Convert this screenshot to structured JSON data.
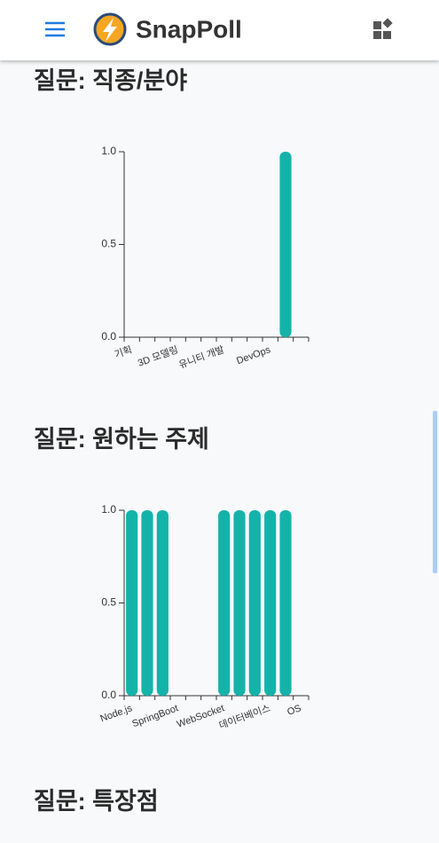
{
  "header": {
    "app_name": "SnapPoll"
  },
  "sections": [
    {
      "title": "질문: 직종/분야",
      "chart": {
        "type": "bar",
        "color": "#14b3aa",
        "categories": [
          "기획",
          null,
          null,
          "3D 모델링",
          null,
          null,
          "유니티 개발",
          null,
          null,
          "DevOps",
          null,
          null
        ],
        "values": [
          0,
          0,
          0,
          0,
          0,
          0,
          0,
          0,
          0,
          0,
          1,
          0
        ],
        "ylim": [
          0,
          1
        ],
        "yticks": [
          {
            "value": 0,
            "label": "0.0"
          },
          {
            "value": 0.5,
            "label": "0.5"
          },
          {
            "value": 1,
            "label": "1.0"
          }
        ]
      }
    },
    {
      "title": "질문: 원하는 주제",
      "chart": {
        "type": "bar",
        "color": "#14b3aa",
        "categories": [
          "Node.js",
          null,
          null,
          "SpringBoot",
          null,
          null,
          "WebSocket",
          null,
          null,
          "데이터베이스",
          null,
          "OS"
        ],
        "values": [
          1,
          1,
          1,
          0,
          0,
          0,
          1,
          1,
          1,
          1,
          1,
          0
        ],
        "ylim": [
          0,
          1
        ],
        "yticks": [
          {
            "value": 0,
            "label": "0.0"
          },
          {
            "value": 0.5,
            "label": "0.5"
          },
          {
            "value": 1,
            "label": "1.0"
          }
        ]
      }
    },
    {
      "title": "질문: 특장점"
    }
  ]
}
